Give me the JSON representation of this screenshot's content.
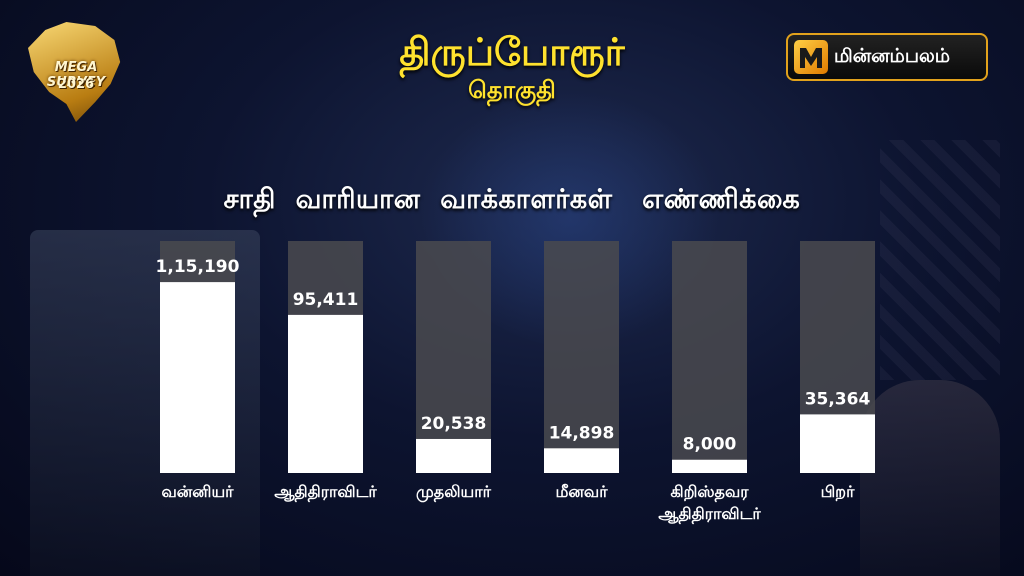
{
  "header": {
    "title": "திருப்போரூர்",
    "subtitle": "தொகுதி"
  },
  "logo": {
    "line1": "MEGA SURVEY",
    "line2": "2026",
    "icon": "tamilnadu-map-logo"
  },
  "brand": {
    "name": "மின்னம்பலம்",
    "icon": "minnambalam-logo",
    "accent": "#e2a21c"
  },
  "colors": {
    "title": "#ffe22e",
    "bar_track": "#4a4a4f",
    "bar_fill": "#ffffff"
  },
  "chart_data": {
    "type": "bar",
    "title": "சாதி  வாரியான  வாக்காளர்கள்   எண்ணிக்கை",
    "categories": [
      [
        "வன்னியர்"
      ],
      [
        "ஆதிதிராவிடர்"
      ],
      [
        "முதலியார்"
      ],
      [
        "மீனவர்"
      ],
      [
        "கிறிஸ்தவர",
        "ஆதிதிராவிடர்"
      ],
      [
        "பிறர்"
      ]
    ],
    "values": [
      115190,
      95411,
      20538,
      14898,
      8000,
      35364
    ],
    "value_labels": [
      "1,15,190",
      "95,411",
      "20,538",
      "14,898",
      "8,000",
      "35,364"
    ],
    "ylim": [
      0,
      140000
    ],
    "grid": false,
    "legend": "none"
  }
}
